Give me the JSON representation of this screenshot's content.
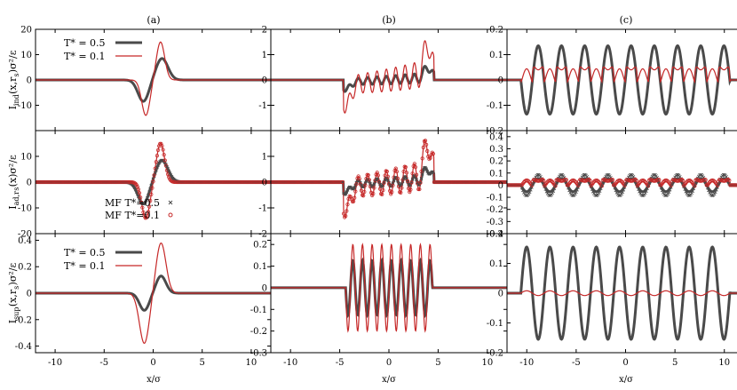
{
  "figure": {
    "xlabel": "x/σ",
    "col_titles": [
      "(a)",
      "(b)",
      "(c)"
    ],
    "row_ylabels": [
      "I_ind(x,r_s)σ²/ε",
      "I_ad,r_s(x)σ²/ε",
      "I_sup(x,r_s)σ²/ε"
    ],
    "row_ylabel_parts": [
      {
        "main": "I",
        "sub": "ind",
        "rest": "(x,r",
        "sub2": "s",
        "tail": ")σ²/ε"
      },
      {
        "main": "I",
        "sub": "ad,r",
        "sub2": "s",
        "rest": "(x)",
        "tail": "σ²/ε"
      },
      {
        "main": "I",
        "sub": "sup",
        "rest": "(x,r",
        "sub2": "s",
        "tail": ")σ²/ε"
      }
    ],
    "legend_lines": [
      {
        "label": "T* = 0.5",
        "color": "#4a4a4a"
      },
      {
        "label": "T* = 0.1",
        "color": "#c62828"
      }
    ],
    "legend_markers": [
      {
        "label": "MF T*=0.5",
        "marker": "x",
        "color": "#4a4a4a"
      },
      {
        "label": "MF T*=0.1",
        "marker": "o",
        "color": "#c62828"
      }
    ],
    "colors": {
      "t05": "#4a4a4a",
      "t01": "#c62828"
    }
  },
  "chart_data": [
    {
      "type": "line",
      "panel": "row1-a",
      "xlim": [
        -12,
        12
      ],
      "ylim": [
        -20,
        20
      ],
      "xticks": [
        -10,
        -5,
        0,
        5,
        10
      ],
      "yticks": [
        -20,
        -10,
        0,
        10,
        20
      ],
      "ytick_labels": [
        "",
        "-10",
        "0",
        "10",
        "20"
      ],
      "series": [
        {
          "name": "T* = 0.5",
          "x": [
            -3,
            -2,
            -1.5,
            -1.2,
            -1,
            -0.5,
            0,
            0.5,
            0.9,
            1.2,
            2,
            3
          ],
          "y": [
            0,
            -1,
            -5,
            -8,
            -8.5,
            -6,
            -1,
            5,
            8.5,
            7.5,
            2,
            0
          ]
        },
        {
          "name": "T* = 0.1",
          "x": [
            -3,
            -2,
            -1.5,
            -1,
            -0.8,
            -0.5,
            0,
            0.3,
            0.6,
            0.8,
            1,
            1.5,
            2,
            3
          ],
          "y": [
            0,
            -1,
            -4,
            -13,
            -14.5,
            -12,
            -5,
            3,
            11,
            15,
            12,
            4,
            1,
            0
          ]
        }
      ]
    },
    {
      "type": "line",
      "panel": "row1-b",
      "xlim": [
        -12,
        12
      ],
      "ylim": [
        -2,
        2
      ],
      "xticks": [
        -10,
        -5,
        0,
        5,
        10
      ],
      "yticks": [
        -2,
        -1,
        0,
        1,
        2
      ],
      "ytick_labels": [
        "",
        "-1",
        "0",
        "1",
        "2"
      ],
      "series": [
        {
          "name": "T* = 0.5",
          "envelope": "skewed oscillation",
          "x_range": [
            -4.5,
            4.5
          ],
          "amplitude": 0.85,
          "period": 0.9
        },
        {
          "name": "T* = 0.1",
          "envelope": "skewed oscillation",
          "x_range": [
            -4.5,
            4.5
          ],
          "amplitude": 2.0,
          "period": 0.9
        }
      ]
    },
    {
      "type": "line",
      "panel": "row1-c",
      "xlim": [
        -12,
        12
      ],
      "ylim": [
        -0.2,
        0.2
      ],
      "xticks": [
        -10,
        -5,
        0,
        5,
        10
      ],
      "yticks": [
        -0.2,
        -0.1,
        0,
        0.1,
        0.2
      ],
      "ytick_labels": [
        "-0.2",
        "-0.1",
        "0",
        "0.1",
        "0.2"
      ],
      "series": [
        {
          "name": "T* = 0.5",
          "x_range": [
            -10.5,
            10.5
          ],
          "amplitude": 0.14,
          "period": 2.4
        },
        {
          "name": "T* = 0.1",
          "x_range": [
            -10.5,
            10.5
          ],
          "amplitude": 0.13,
          "period": 2.4
        }
      ]
    },
    {
      "type": "line+scatter",
      "panel": "row2-a",
      "xlim": [
        -12,
        12
      ],
      "ylim": [
        -20,
        20
      ],
      "xticks": [
        -10,
        -5,
        0,
        5,
        10
      ],
      "yticks": [
        -20,
        -10,
        0,
        10,
        20
      ],
      "ytick_labels": [
        "-20",
        "-10",
        "0",
        "10",
        ""
      ]
    },
    {
      "type": "line+scatter",
      "panel": "row2-b",
      "xlim": [
        -12,
        12
      ],
      "ylim": [
        -2,
        2
      ],
      "xticks": [
        -10,
        -5,
        0,
        5,
        10
      ],
      "yticks": [
        -2,
        -1,
        0,
        1,
        2
      ],
      "ytick_labels": [
        "-2",
        "-1",
        "0",
        "1",
        ""
      ]
    },
    {
      "type": "line+scatter",
      "panel": "row2-c",
      "xlim": [
        -12,
        12
      ],
      "ylim": [
        -0.4,
        0.45
      ],
      "xticks": [
        -10,
        -5,
        0,
        5,
        10
      ],
      "yticks": [
        -0.4,
        -0.3,
        -0.2,
        -0.1,
        0,
        0.1,
        0.2,
        0.3,
        0.4
      ],
      "ytick_labels": [
        "-0.4",
        "-0.3",
        "-0.2",
        "-0.1",
        "0",
        "0.1",
        "0.2",
        "0.3",
        "0.4"
      ]
    },
    {
      "type": "line",
      "panel": "row3-a",
      "xlim": [
        -12,
        12
      ],
      "ylim": [
        -0.45,
        0.45
      ],
      "xticks": [
        -10,
        -5,
        0,
        5,
        10
      ],
      "yticks": [
        -0.4,
        -0.2,
        0,
        0.2,
        0.4
      ],
      "ytick_labels": [
        "-0.4",
        "-0.2",
        "0",
        "0.2",
        "0.4"
      ]
    },
    {
      "type": "line",
      "panel": "row3-b",
      "xlim": [
        -12,
        12
      ],
      "ylim": [
        -0.3,
        0.25
      ],
      "xticks": [
        -10,
        -5,
        0,
        5,
        10
      ],
      "yticks": [
        -0.3,
        -0.2,
        -0.1,
        0,
        0.1,
        0.2
      ],
      "ytick_labels": [
        "-0.3",
        "-0.2",
        "-0.1",
        "0",
        "0.1",
        "0.2"
      ]
    },
    {
      "type": "line",
      "panel": "row3-c",
      "xlim": [
        -12,
        12
      ],
      "ylim": [
        -0.2,
        0.2
      ],
      "xticks": [
        -10,
        -5,
        0,
        5,
        10
      ],
      "yticks": [
        -0.2,
        -0.1,
        0,
        0.1,
        0.2
      ],
      "ytick_labels": [
        "-0.2",
        "-0.1",
        "0",
        "0.1",
        "0.2"
      ]
    }
  ]
}
